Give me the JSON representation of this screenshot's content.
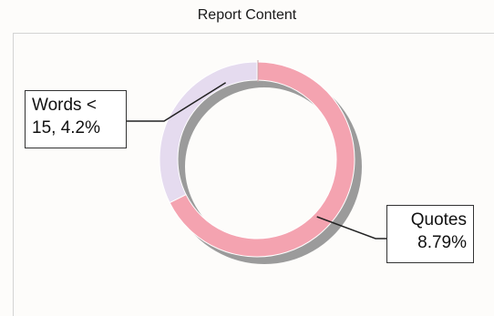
{
  "chart_data": {
    "type": "pie",
    "style": "doughnut",
    "title": "Report Content",
    "slices": [
      {
        "label_line1": "Quotes",
        "label_line2": "8.79%",
        "value": 8.79,
        "color": "#f4a3b0"
      },
      {
        "label_line1": "Words <",
        "label_line2": "15, 4.2%",
        "value": 4.2,
        "color": "#e5dbef"
      }
    ],
    "legend": "none",
    "shadow": true,
    "shadow_color": "#8a8a8a"
  }
}
